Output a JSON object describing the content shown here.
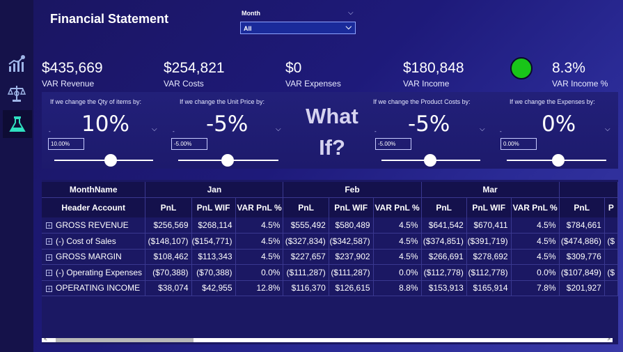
{
  "header": {
    "title": "Financial Statement"
  },
  "slicer": {
    "label": "Month",
    "value": "All"
  },
  "sidebar": {
    "items": [
      {
        "icon": "chart-icon"
      },
      {
        "icon": "scale-icon"
      },
      {
        "icon": "flask-icon"
      }
    ]
  },
  "kpis": [
    {
      "value": "$435,669",
      "label": "VAR Revenue"
    },
    {
      "value": "$254,821",
      "label": "VAR Costs"
    },
    {
      "value": "$0",
      "label": "VAR Expenses"
    },
    {
      "value": "$180,848",
      "label": "VAR Income"
    },
    {
      "value": "8.3%",
      "label": "VAR Income %"
    }
  ],
  "status_color": "#19c519",
  "whatif": {
    "title_line1": "What",
    "title_line2": "If?",
    "params": [
      {
        "label": "If we change the Qty of items by:",
        "value": "10%",
        "input": "10.00%",
        "level": 0.55
      },
      {
        "label": "If we change the Unit Price by:",
        "value": "-5%",
        "input": "-5.00%",
        "level": 0.45
      },
      {
        "label": "If we change the Product Costs by:",
        "value": "-5%",
        "input": "-5.00%",
        "level": 0.45
      },
      {
        "label": "If we change the Expenses by:",
        "value": "0%",
        "input": "0.00%",
        "level": 0.5
      }
    ]
  },
  "table": {
    "corner_month": "MonthName",
    "corner_header": "Header Account",
    "months": [
      "Jan",
      "Feb",
      "Mar",
      ""
    ],
    "columns": [
      "PnL",
      "PnL WIF",
      "VAR PnL %",
      "PnL",
      "PnL WIF",
      "VAR PnL %",
      "PnL",
      "PnL WIF",
      "VAR PnL %",
      "PnL",
      "P"
    ],
    "rows": [
      {
        "account": "GROSS REVENUE",
        "cells": [
          "$256,569",
          "$268,114",
          "4.5%",
          "$555,492",
          "$580,489",
          "4.5%",
          "$641,542",
          "$670,411",
          "4.5%",
          "$784,661",
          ""
        ]
      },
      {
        "account": "(-) Cost of Sales",
        "cells": [
          "($148,107)",
          "($154,771)",
          "4.5%",
          "($327,834)",
          "($342,587)",
          "4.5%",
          "($374,851)",
          "($391,719)",
          "4.5%",
          "($474,886)",
          "($"
        ]
      },
      {
        "account": "GROSS MARGIN",
        "cells": [
          "$108,462",
          "$113,343",
          "4.5%",
          "$227,657",
          "$237,902",
          "4.5%",
          "$266,691",
          "$278,692",
          "4.5%",
          "$309,776",
          ""
        ]
      },
      {
        "account": "(-) Operating Expenses",
        "cells": [
          "($70,388)",
          "($70,388)",
          "0.0%",
          "($111,287)",
          "($111,287)",
          "0.0%",
          "($112,778)",
          "($112,778)",
          "0.0%",
          "($107,849)",
          "($"
        ]
      },
      {
        "account": "OPERATING INCOME",
        "cells": [
          "$38,074",
          "$42,955",
          "12.8%",
          "$116,370",
          "$126,615",
          "8.8%",
          "$153,913",
          "$165,914",
          "7.8%",
          "$201,927",
          ""
        ]
      }
    ]
  }
}
